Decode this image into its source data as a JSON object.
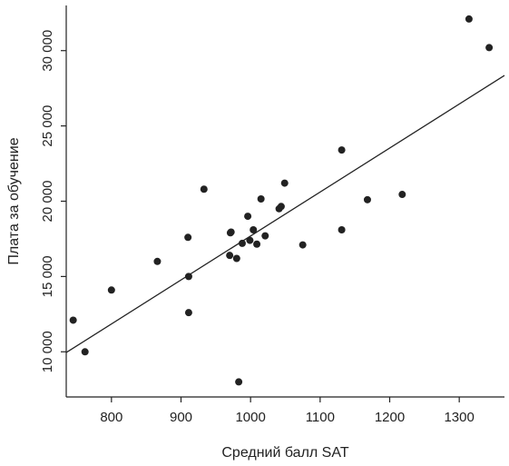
{
  "chart_data": {
    "type": "scatter",
    "xlabel": "Средний балл SAT",
    "ylabel": "Плата за обучение",
    "xlim": [
      735,
      1365
    ],
    "ylim": [
      7000,
      33000
    ],
    "xticks": [
      {
        "value": 800,
        "label": "800"
      },
      {
        "value": 900,
        "label": "900"
      },
      {
        "value": 1000,
        "label": "1000"
      },
      {
        "value": 1100,
        "label": "1100"
      },
      {
        "value": 1200,
        "label": "1200"
      },
      {
        "value": 1300,
        "label": "1300"
      }
    ],
    "yticks": [
      {
        "value": 10000,
        "label": "10 000"
      },
      {
        "value": 15000,
        "label": "15 000"
      },
      {
        "value": 20000,
        "label": "20 000"
      },
      {
        "value": 25000,
        "label": "25 000"
      },
      {
        "value": 30000,
        "label": "30 000"
      }
    ],
    "points": [
      {
        "x": 745,
        "y": 12100
      },
      {
        "x": 762,
        "y": 10000
      },
      {
        "x": 800,
        "y": 14100
      },
      {
        "x": 866,
        "y": 16000
      },
      {
        "x": 910,
        "y": 17600
      },
      {
        "x": 911,
        "y": 15000
      },
      {
        "x": 911,
        "y": 12600
      },
      {
        "x": 933,
        "y": 20800
      },
      {
        "x": 970,
        "y": 16400
      },
      {
        "x": 971,
        "y": 17900
      },
      {
        "x": 972,
        "y": 17950
      },
      {
        "x": 980,
        "y": 16200
      },
      {
        "x": 983,
        "y": 8000
      },
      {
        "x": 988,
        "y": 17200
      },
      {
        "x": 996,
        "y": 19000
      },
      {
        "x": 999,
        "y": 17400
      },
      {
        "x": 1004,
        "y": 18100
      },
      {
        "x": 1009,
        "y": 17150
      },
      {
        "x": 1015,
        "y": 20150
      },
      {
        "x": 1021,
        "y": 17700
      },
      {
        "x": 1041,
        "y": 19500
      },
      {
        "x": 1044,
        "y": 19650
      },
      {
        "x": 1049,
        "y": 21200
      },
      {
        "x": 1075,
        "y": 17100
      },
      {
        "x": 1131,
        "y": 23400
      },
      {
        "x": 1131,
        "y": 18100
      },
      {
        "x": 1168,
        "y": 20100
      },
      {
        "x": 1218,
        "y": 20450
      },
      {
        "x": 1314,
        "y": 32100
      },
      {
        "x": 1343,
        "y": 30200
      }
    ],
    "fit_line": {
      "x1": 735,
      "y1": 9950,
      "x2": 1365,
      "y2": 28350
    },
    "grid": false,
    "legend": "none"
  }
}
